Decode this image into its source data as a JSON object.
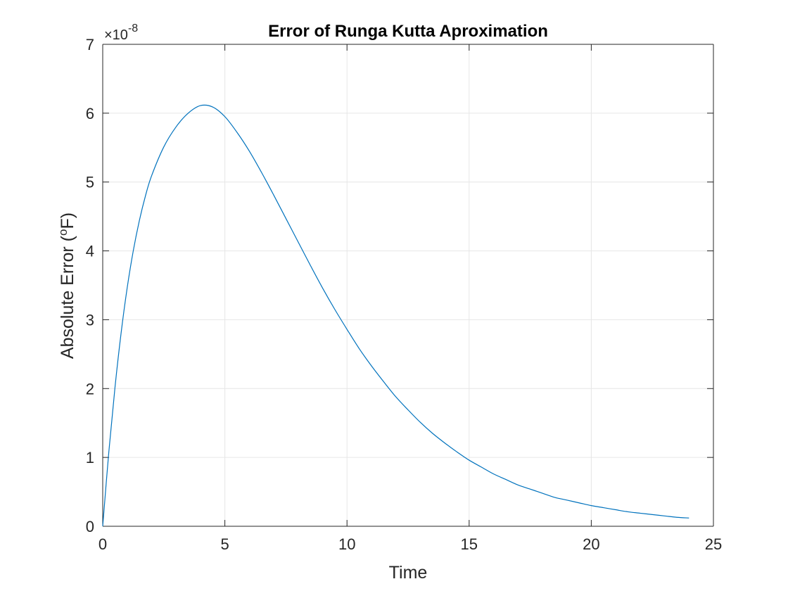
{
  "chart_data": {
    "type": "line",
    "title": "Error of Runga Kutta Aproximation",
    "xlabel": "Time",
    "ylabel_prefix": "Absolute Error (",
    "ylabel_superscript": "o",
    "ylabel_suffix": "F)",
    "y_multiplier_symbol": "×10",
    "y_multiplier_exponent": "-8",
    "xlim": [
      0,
      25
    ],
    "ylim": [
      0,
      7
    ],
    "xticks": [
      0,
      5,
      10,
      15,
      20,
      25
    ],
    "yticks": [
      0,
      1,
      2,
      3,
      4,
      5,
      6,
      7
    ],
    "xtick_labels": [
      "0",
      "5",
      "10",
      "15",
      "20",
      "25"
    ],
    "ytick_labels": [
      "0",
      "1",
      "2",
      "3",
      "4",
      "5",
      "6",
      "7"
    ],
    "grid": true,
    "line_color": "#0072BD",
    "grid_color": "#e6e6e6",
    "axis_color": "#262626",
    "series": [
      {
        "x": [
          0,
          0.25,
          0.5,
          0.75,
          1,
          1.25,
          1.5,
          1.75,
          2,
          2.5,
          3,
          3.5,
          4,
          4.5,
          5,
          5.5,
          6,
          6.5,
          7,
          7.5,
          8,
          8.5,
          9,
          9.5,
          10,
          10.5,
          11,
          11.5,
          12,
          12.5,
          13,
          13.5,
          14,
          14.5,
          15,
          15.5,
          16,
          16.5,
          17,
          17.5,
          18,
          18.5,
          19,
          19.5,
          20,
          20.5,
          21,
          21.5,
          22,
          22.5,
          23,
          23.5,
          24
        ],
        "y": [
          0,
          1.08,
          2.01,
          2.8,
          3.46,
          4.0,
          4.44,
          4.8,
          5.09,
          5.51,
          5.8,
          6.0,
          6.11,
          6.09,
          5.95,
          5.72,
          5.45,
          5.14,
          4.81,
          4.47,
          4.13,
          3.79,
          3.46,
          3.15,
          2.86,
          2.58,
          2.33,
          2.1,
          1.88,
          1.69,
          1.51,
          1.35,
          1.21,
          1.08,
          0.96,
          0.86,
          0.76,
          0.68,
          0.6,
          0.54,
          0.48,
          0.42,
          0.38,
          0.34,
          0.3,
          0.27,
          0.24,
          0.21,
          0.19,
          0.17,
          0.15,
          0.13,
          0.12
        ]
      }
    ]
  }
}
